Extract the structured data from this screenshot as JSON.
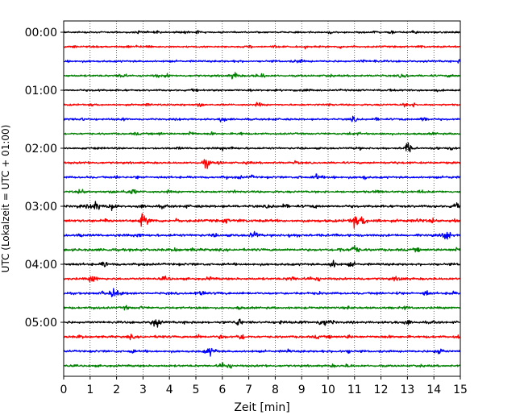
{
  "chart_data": {
    "type": "line",
    "kind": "helicorder-seismogram",
    "xlabel": "Zeit  [min]",
    "ylabel": "UTC (Lokalzeit = UTC + 01:00)",
    "xlim": [
      0,
      15
    ],
    "x_ticks": [
      0,
      1,
      2,
      3,
      4,
      5,
      6,
      7,
      8,
      9,
      10,
      11,
      12,
      13,
      14,
      15
    ],
    "y_tick_labels": [
      "00:00",
      "01:00",
      "02:00",
      "03:00",
      "04:00",
      "05:00"
    ],
    "y_tick_rows": [
      0,
      4,
      8,
      12,
      16,
      20
    ],
    "row_count": 24,
    "minutes_per_row": 15,
    "color_cycle": [
      "#000000",
      "#ff0000",
      "#0000ff",
      "#008000"
    ],
    "grid": "vertical-dotted",
    "traces_amplitude_note_removed": true,
    "row_activity": [
      0.25,
      0.25,
      0.35,
      0.35,
      0.3,
      0.25,
      0.35,
      0.3,
      0.35,
      0.4,
      0.45,
      0.45,
      0.7,
      0.8,
      0.65,
      0.7,
      0.6,
      0.55,
      0.5,
      0.45,
      0.6,
      0.55,
      0.5,
      0.45
    ],
    "events": [
      [
        13.0,
        0.8,
        8
      ],
      [
        5.4,
        0.6,
        9
      ],
      [
        13.6,
        0.5,
        6
      ],
      [
        1.2,
        0.8,
        12
      ],
      [
        1.8,
        0.6,
        12
      ],
      [
        3.0,
        0.9,
        13
      ],
      [
        11.0,
        0.8,
        13
      ],
      [
        11.3,
        0.7,
        13
      ],
      [
        7.2,
        0.6,
        14
      ],
      [
        14.5,
        0.7,
        14
      ],
      [
        11.0,
        0.8,
        15
      ],
      [
        10.2,
        0.6,
        16
      ],
      [
        1.1,
        0.6,
        17
      ],
      [
        1.9,
        0.7,
        18
      ],
      [
        3.5,
        0.6,
        20
      ],
      [
        6.6,
        0.6,
        20
      ],
      [
        9.8,
        0.7,
        20
      ],
      [
        6.7,
        0.5,
        21
      ],
      [
        5.5,
        0.6,
        22
      ],
      [
        14.2,
        0.6,
        22
      ],
      [
        6.0,
        0.5,
        23
      ],
      [
        6.5,
        0.4,
        3
      ],
      [
        2.2,
        0.4,
        3
      ],
      [
        6.0,
        0.5,
        6
      ],
      [
        9.6,
        0.3,
        10
      ]
    ]
  }
}
